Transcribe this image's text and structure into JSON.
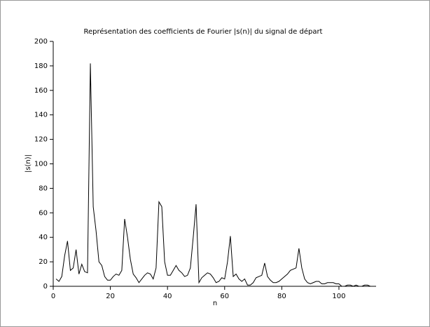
{
  "chart_data": {
    "type": "line",
    "title": "Représentation des coefficients de Fourier |s(n)| du signal de départ",
    "xlabel": "n",
    "ylabel": "|s(n)|",
    "x": [
      1,
      2,
      3,
      4,
      5,
      6,
      7,
      8,
      9,
      10,
      11,
      12,
      13,
      14,
      15,
      16,
      17,
      18,
      19,
      20,
      21,
      22,
      23,
      24,
      25,
      26,
      27,
      28,
      29,
      30,
      31,
      32,
      33,
      34,
      35,
      36,
      37,
      38,
      39,
      40,
      41,
      42,
      43,
      44,
      45,
      46,
      47,
      48,
      49,
      50,
      51,
      52,
      53,
      54,
      55,
      56,
      57,
      58,
      59,
      60,
      61,
      62,
      63,
      64,
      65,
      66,
      67,
      68,
      69,
      70,
      71,
      72,
      73,
      74,
      75,
      76,
      77,
      78,
      79,
      80,
      81,
      82,
      83,
      84,
      85,
      86,
      87,
      88,
      89,
      90,
      91,
      92,
      93,
      94,
      95,
      96,
      97,
      98,
      99,
      100,
      101,
      102,
      103,
      104,
      105,
      106,
      107,
      108,
      109,
      110,
      111,
      112
    ],
    "series": [
      {
        "color": "#000000",
        "values": [
          6,
          4,
          8,
          25,
          37,
          13,
          15,
          30,
          10,
          18,
          12,
          11,
          182,
          65,
          45,
          20,
          17,
          8,
          5,
          5,
          8,
          10,
          9,
          13,
          55,
          40,
          22,
          10,
          7,
          3,
          6,
          9,
          11,
          10,
          6,
          15,
          69,
          65,
          20,
          9,
          9,
          13,
          17,
          13,
          11,
          8,
          9,
          15,
          40,
          67,
          3,
          7,
          9,
          11,
          10,
          7,
          3,
          4,
          7,
          6,
          20,
          41,
          8,
          10,
          6,
          4,
          6,
          1,
          1,
          3,
          7,
          8,
          9,
          19,
          8,
          5,
          3,
          3,
          4,
          6,
          8,
          10,
          13,
          14,
          15,
          31,
          15,
          6,
          3,
          2,
          3,
          4,
          4,
          2,
          2,
          3,
          3,
          3,
          2,
          2,
          0,
          0,
          1,
          1,
          0,
          1,
          0,
          0,
          1,
          1,
          0,
          0
        ]
      }
    ],
    "xlim": [
      0,
      113
    ],
    "ylim": [
      0,
      200
    ],
    "xticks": [
      0,
      20,
      40,
      60,
      80,
      100
    ],
    "yticks": [
      0,
      20,
      40,
      60,
      80,
      100,
      120,
      140,
      160,
      180,
      200
    ]
  }
}
